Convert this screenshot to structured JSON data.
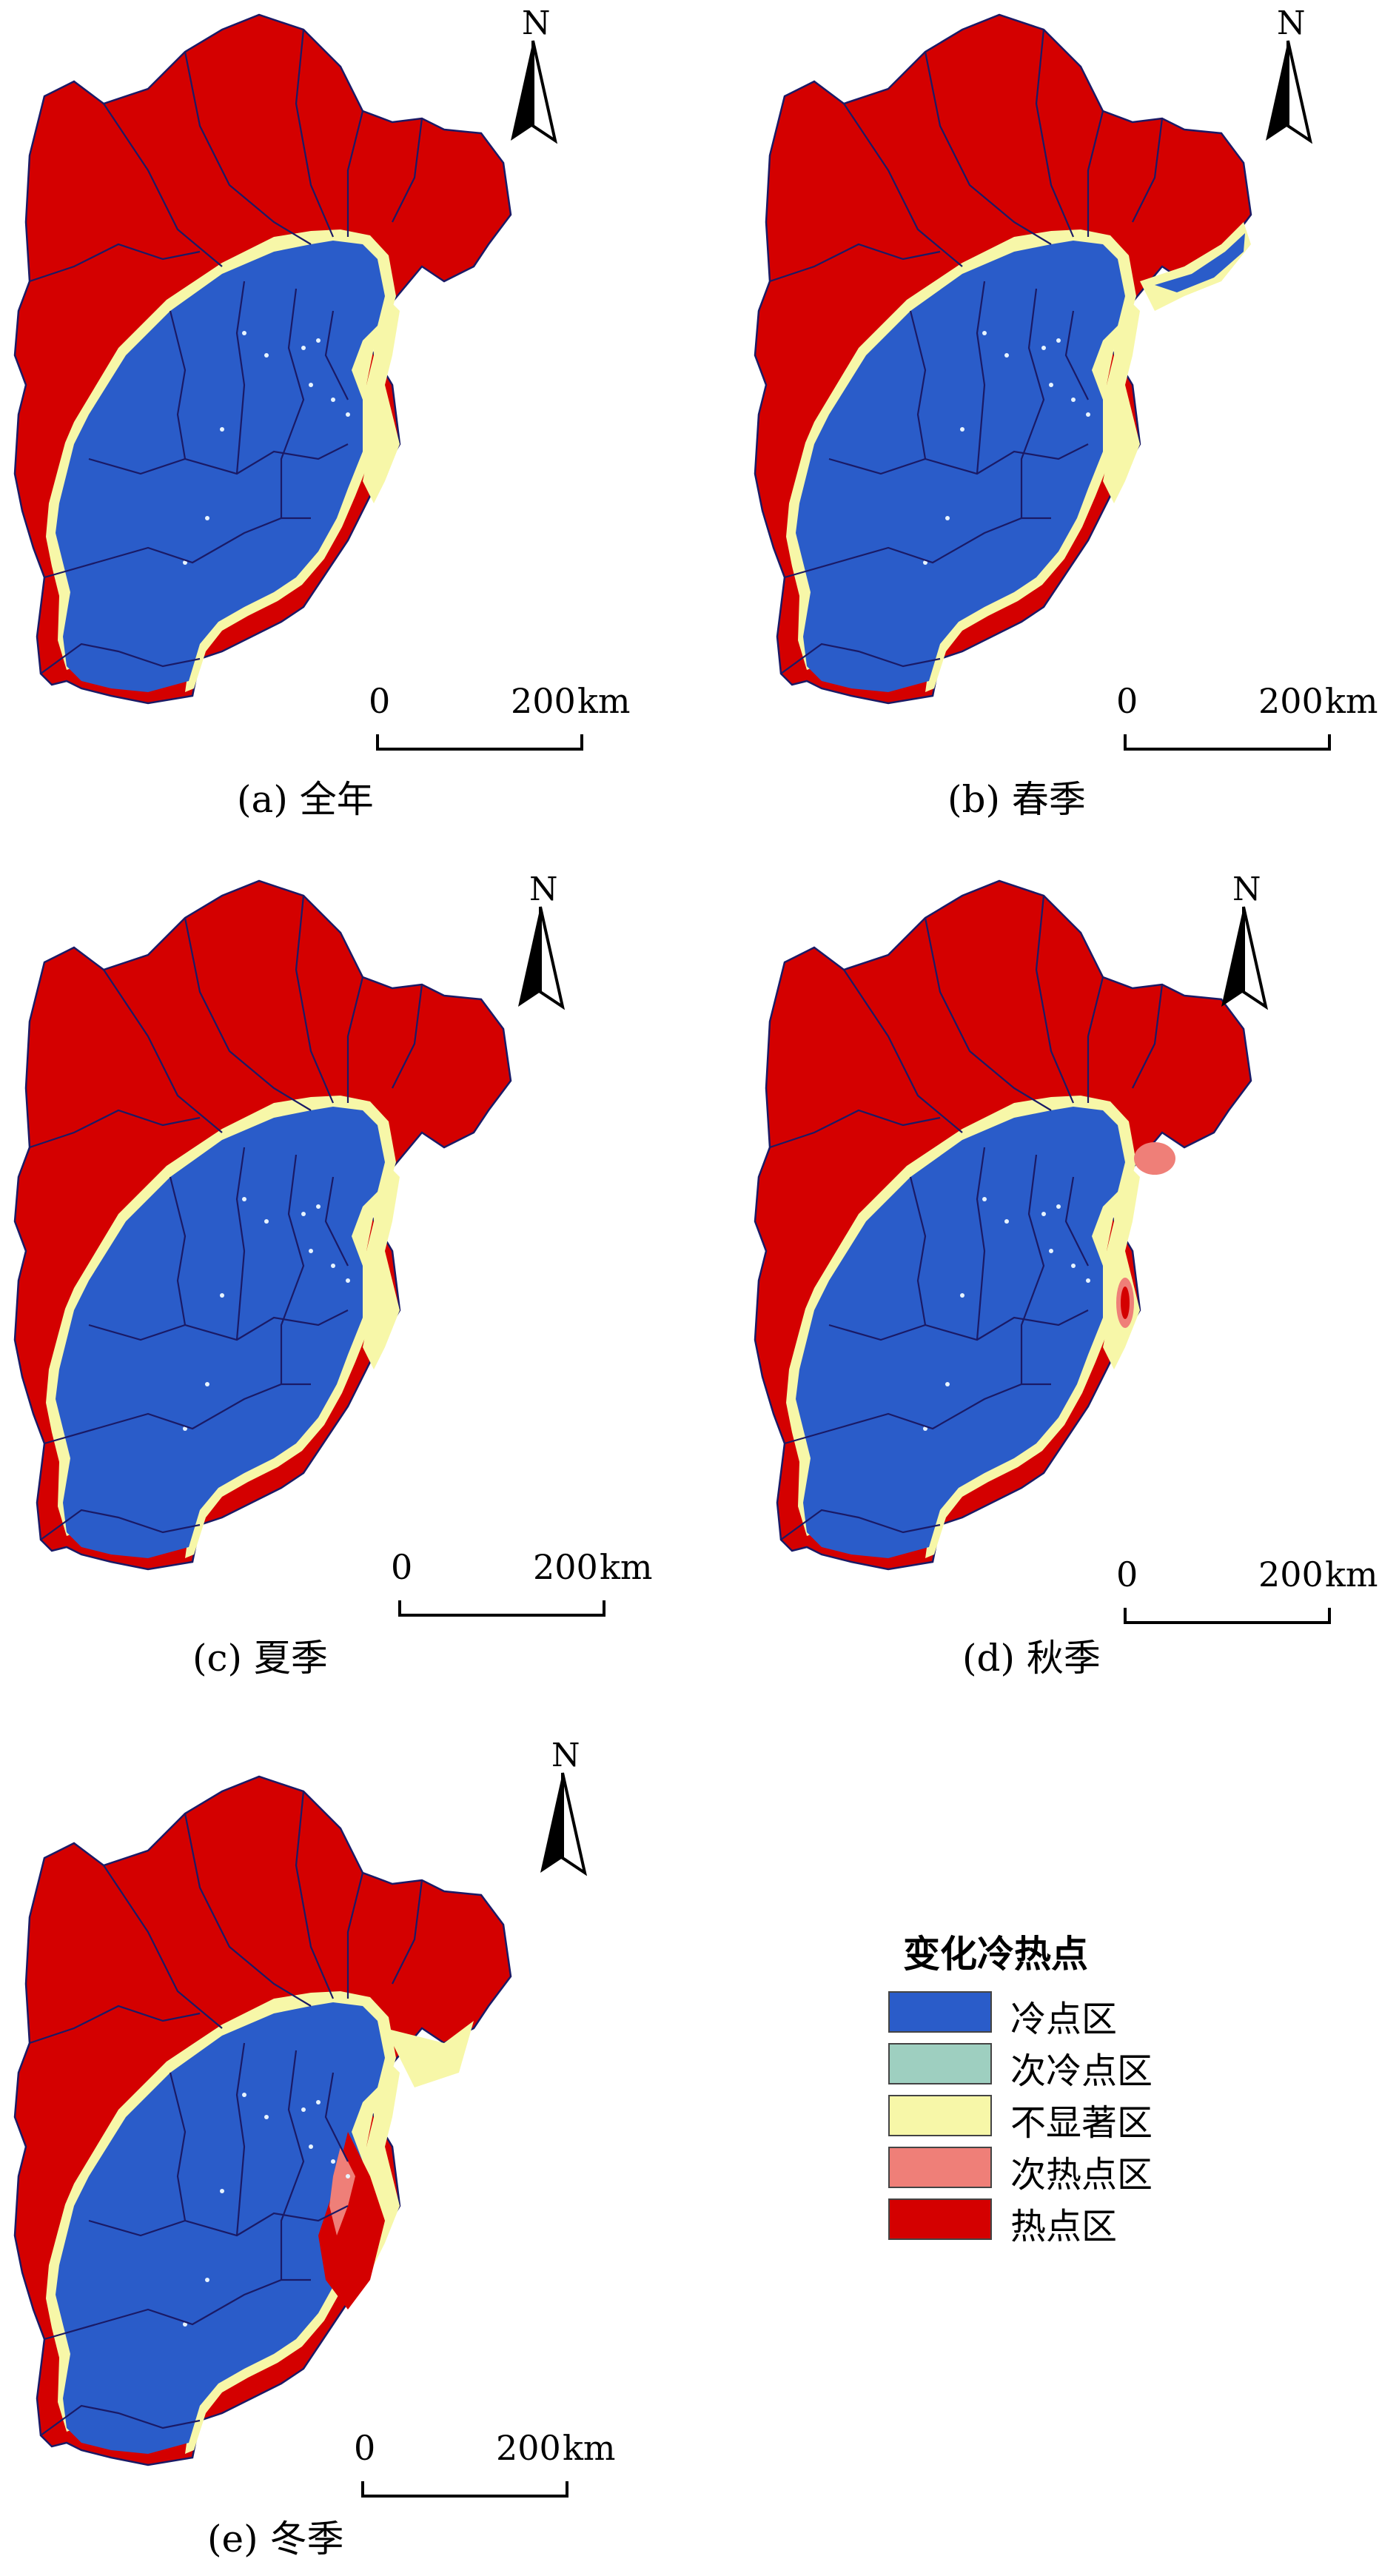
{
  "panels": [
    {
      "caption": "(a) 全年",
      "north": "N",
      "scale_zero": "0",
      "scale_max": "200",
      "scale_unit": "km"
    },
    {
      "caption": "(b) 春季",
      "north": "N",
      "scale_zero": "0",
      "scale_max": "200",
      "scale_unit": "km"
    },
    {
      "caption": "(c) 夏季",
      "north": "N",
      "scale_zero": "0",
      "scale_max": "200",
      "scale_unit": "km"
    },
    {
      "caption": "(d) 秋季",
      "north": "N",
      "scale_zero": "0",
      "scale_max": "200",
      "scale_unit": "km"
    },
    {
      "caption": "(e) 冬季",
      "north": "N",
      "scale_zero": "0",
      "scale_max": "200",
      "scale_unit": "km"
    }
  ],
  "legend": {
    "title": "变化冷热点",
    "items": [
      {
        "label": "冷点区",
        "color": "#2a5cc9"
      },
      {
        "label": "次冷点区",
        "color": "#9ecfc0"
      },
      {
        "label": "不显著区",
        "color": "#f7f7a8"
      },
      {
        "label": "次热点区",
        "color": "#ef7f78"
      },
      {
        "label": "热点区",
        "color": "#d40000"
      }
    ]
  },
  "colors": {
    "cold": "#2a5cc9",
    "subcold": "#9ecfc0",
    "neutral": "#f7f7a8",
    "subhot": "#ef7f78",
    "hot": "#d40000",
    "boundary": "#1a1a66"
  }
}
